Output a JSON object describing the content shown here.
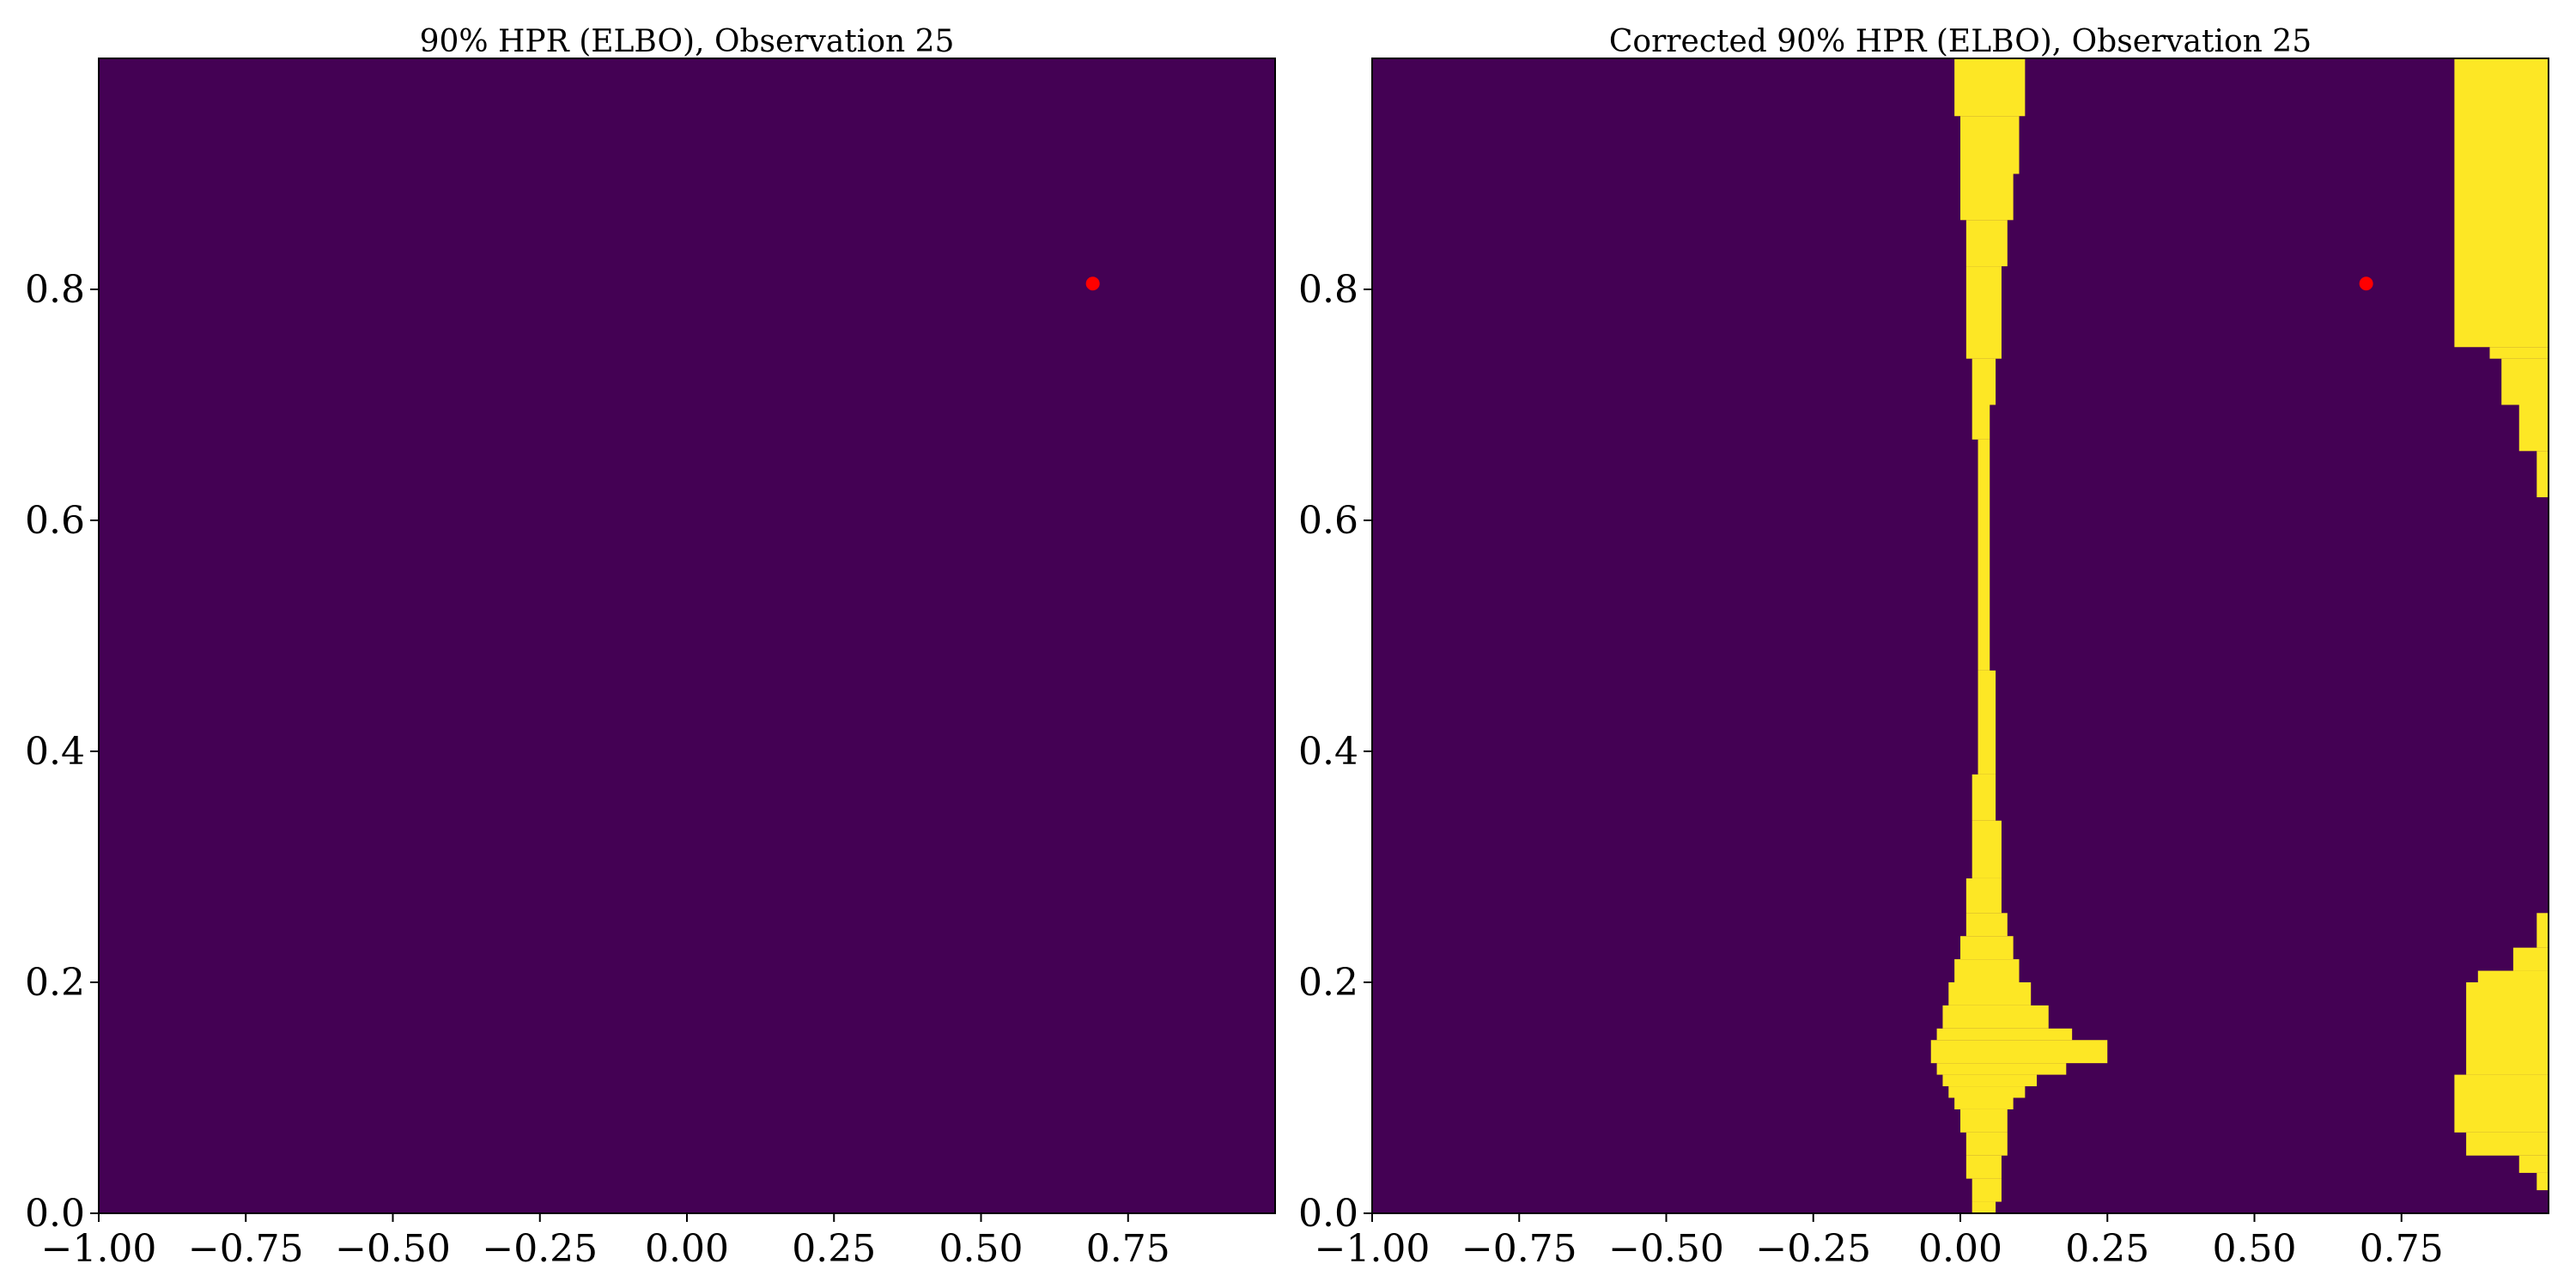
{
  "chart_data": [
    {
      "type": "heatmap",
      "title": "90% HPR (ELBO), Observation 25",
      "xlabel": "",
      "ylabel": "",
      "xlim": [
        -1.0,
        1.0
      ],
      "ylim": [
        0.0,
        1.0
      ],
      "xticks": [
        "−1.00",
        "−0.75",
        "−0.50",
        "−0.25",
        "0.00",
        "0.25",
        "0.50",
        "0.75"
      ],
      "yticks": [
        "0.0",
        "0.2",
        "0.4",
        "0.6",
        "0.8"
      ],
      "grid": false,
      "colors": {
        "outside": "#440154",
        "inside": "#fde725",
        "observation": "#ff0000"
      },
      "region": [],
      "observation": {
        "x": 0.69,
        "y": 0.805
      }
    },
    {
      "type": "heatmap",
      "title": "Corrected 90% HPR (ELBO), Observation 25",
      "xlabel": "",
      "ylabel": "",
      "xlim": [
        -1.0,
        1.0
      ],
      "ylim": [
        0.0,
        1.0
      ],
      "xticks": [
        "−1.00",
        "−0.75",
        "−0.50",
        "−0.25",
        "0.00",
        "0.25",
        "0.50",
        "0.75"
      ],
      "yticks": [
        "0.0",
        "0.2",
        "0.4",
        "0.6",
        "0.8"
      ],
      "grid": false,
      "colors": {
        "outside": "#440154",
        "inside": "#fde725",
        "observation": "#ff0000"
      },
      "region": [
        {
          "x0": 0.02,
          "x1": 0.06,
          "y0": 0.0,
          "y1": 0.01
        },
        {
          "x0": 0.02,
          "x1": 0.07,
          "y0": 0.01,
          "y1": 0.03
        },
        {
          "x0": 0.01,
          "x1": 0.07,
          "y0": 0.03,
          "y1": 0.05
        },
        {
          "x0": 0.01,
          "x1": 0.08,
          "y0": 0.05,
          "y1": 0.07
        },
        {
          "x0": 0.0,
          "x1": 0.08,
          "y0": 0.07,
          "y1": 0.09
        },
        {
          "x0": -0.01,
          "x1": 0.09,
          "y0": 0.09,
          "y1": 0.1
        },
        {
          "x0": -0.02,
          "x1": 0.11,
          "y0": 0.1,
          "y1": 0.11
        },
        {
          "x0": -0.03,
          "x1": 0.13,
          "y0": 0.11,
          "y1": 0.12
        },
        {
          "x0": -0.04,
          "x1": 0.18,
          "y0": 0.12,
          "y1": 0.13
        },
        {
          "x0": -0.05,
          "x1": 0.25,
          "y0": 0.13,
          "y1": 0.15
        },
        {
          "x0": -0.04,
          "x1": 0.19,
          "y0": 0.15,
          "y1": 0.16
        },
        {
          "x0": -0.03,
          "x1": 0.15,
          "y0": 0.16,
          "y1": 0.18
        },
        {
          "x0": -0.02,
          "x1": 0.12,
          "y0": 0.18,
          "y1": 0.2
        },
        {
          "x0": -0.01,
          "x1": 0.1,
          "y0": 0.2,
          "y1": 0.22
        },
        {
          "x0": 0.0,
          "x1": 0.09,
          "y0": 0.22,
          "y1": 0.24
        },
        {
          "x0": 0.01,
          "x1": 0.08,
          "y0": 0.24,
          "y1": 0.26
        },
        {
          "x0": 0.01,
          "x1": 0.07,
          "y0": 0.26,
          "y1": 0.29
        },
        {
          "x0": 0.02,
          "x1": 0.07,
          "y0": 0.29,
          "y1": 0.34
        },
        {
          "x0": 0.02,
          "x1": 0.06,
          "y0": 0.34,
          "y1": 0.38
        },
        {
          "x0": 0.03,
          "x1": 0.06,
          "y0": 0.38,
          "y1": 0.47
        },
        {
          "x0": 0.03,
          "x1": 0.05,
          "y0": 0.47,
          "y1": 0.67
        },
        {
          "x0": 0.02,
          "x1": 0.05,
          "y0": 0.67,
          "y1": 0.7
        },
        {
          "x0": 0.02,
          "x1": 0.06,
          "y0": 0.7,
          "y1": 0.74
        },
        {
          "x0": 0.01,
          "x1": 0.07,
          "y0": 0.74,
          "y1": 0.82
        },
        {
          "x0": 0.01,
          "x1": 0.08,
          "y0": 0.82,
          "y1": 0.86
        },
        {
          "x0": 0.0,
          "x1": 0.09,
          "y0": 0.86,
          "y1": 0.9
        },
        {
          "x0": 0.0,
          "x1": 0.1,
          "y0": 0.9,
          "y1": 0.95
        },
        {
          "x0": -0.01,
          "x1": 0.11,
          "y0": 0.95,
          "y1": 1.0
        },
        {
          "x0": 0.84,
          "x1": 1.0,
          "y0": 0.75,
          "y1": 1.0
        },
        {
          "x0": 0.9,
          "x1": 1.0,
          "y0": 0.74,
          "y1": 0.75
        },
        {
          "x0": 0.92,
          "x1": 1.0,
          "y0": 0.7,
          "y1": 0.74
        },
        {
          "x0": 0.95,
          "x1": 1.0,
          "y0": 0.66,
          "y1": 0.7
        },
        {
          "x0": 0.98,
          "x1": 1.0,
          "y0": 0.62,
          "y1": 0.66
        },
        {
          "x0": 0.98,
          "x1": 1.0,
          "y0": 0.23,
          "y1": 0.26
        },
        {
          "x0": 0.94,
          "x1": 1.0,
          "y0": 0.21,
          "y1": 0.23
        },
        {
          "x0": 0.88,
          "x1": 1.0,
          "y0": 0.2,
          "y1": 0.21
        },
        {
          "x0": 0.86,
          "x1": 1.0,
          "y0": 0.12,
          "y1": 0.2
        },
        {
          "x0": 0.84,
          "x1": 1.0,
          "y0": 0.07,
          "y1": 0.12
        },
        {
          "x0": 0.86,
          "x1": 1.0,
          "y0": 0.05,
          "y1": 0.07
        },
        {
          "x0": 0.95,
          "x1": 1.0,
          "y0": 0.035,
          "y1": 0.05
        },
        {
          "x0": 0.98,
          "x1": 1.0,
          "y0": 0.02,
          "y1": 0.035
        }
      ],
      "observation": {
        "x": 0.69,
        "y": 0.805
      }
    }
  ]
}
